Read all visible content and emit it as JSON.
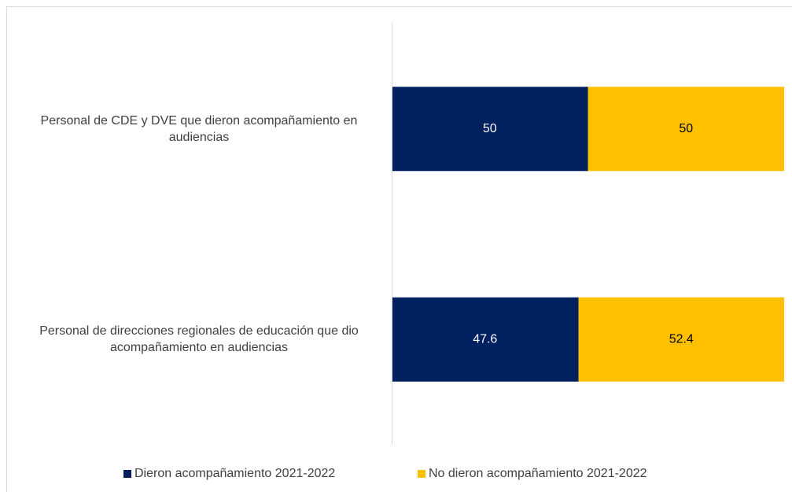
{
  "chart_data": {
    "type": "bar",
    "orientation": "horizontal",
    "stacked": true,
    "categories": [
      "Personal de CDE y DVE que dieron acompañamiento en audiencias",
      "Personal de direcciones regionales de educación que dio acompañamiento en audiencias"
    ],
    "series": [
      {
        "name": "Dieron acompañamiento 2021-2022",
        "color": "#002060",
        "values": [
          50,
          47.6
        ]
      },
      {
        "name": "No dieron acompañamiento 2021-2022",
        "color": "#FFC000",
        "values": [
          50,
          52.4
        ]
      }
    ],
    "xlim": [
      0,
      100
    ],
    "legend": "bottom"
  }
}
